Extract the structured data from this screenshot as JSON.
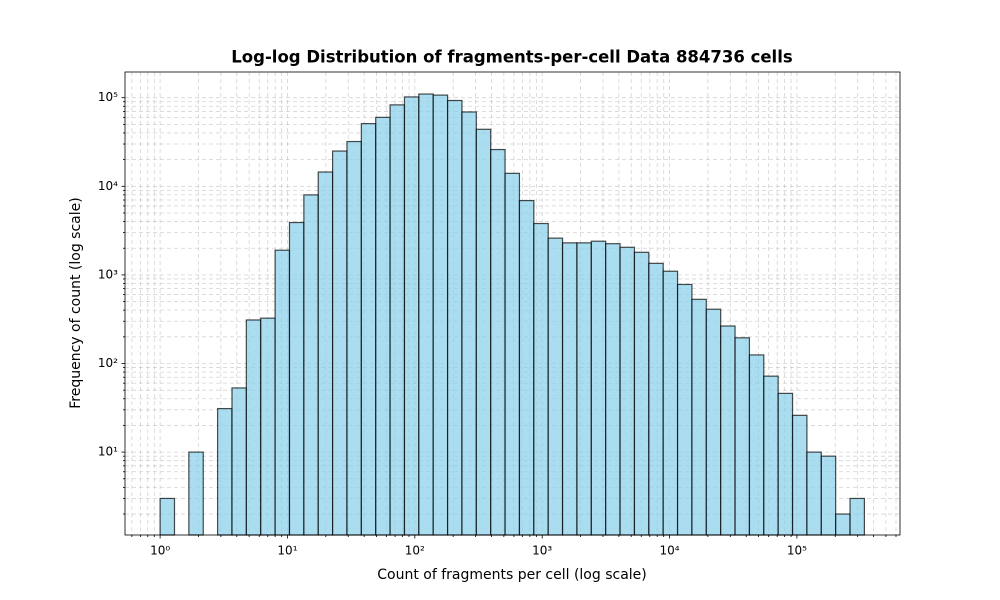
{
  "chart_data": {
    "type": "histogram",
    "title": "Log-log Distribution of fragments-per-cell Data 884736 cells",
    "xlabel": "Count of fragments per cell (log scale)",
    "ylabel": "Frequency of count (log scale)",
    "bins": [
      1,
      1.297,
      1.681,
      2.181,
      2.828,
      3.667,
      4.755,
      6.166,
      7.997,
      10.37,
      13.45,
      17.44,
      22.61,
      29.32,
      38.02,
      49.31,
      63.93,
      82.91,
      107.5,
      139.4,
      180.8,
      234.4,
      304.0,
      394.2,
      511.2,
      662.9,
      859.7,
      1115,
      1445,
      1875,
      2431,
      3152,
      4088,
      5301,
      6875,
      8913,
      11558,
      14988,
      19437,
      25206,
      32687,
      42389,
      54954,
      71276,
      92432,
      119866,
      155445,
      201583,
      261414,
      338844
    ],
    "counts": [
      3,
      0,
      10,
      0,
      31,
      53,
      310,
      325,
      1900,
      3900,
      8000,
      14500,
      25000,
      32000,
      51000,
      60000,
      83000,
      102000,
      110000,
      107000,
      93000,
      69000,
      44000,
      26000,
      14000,
      6900,
      3800,
      2600,
      2300,
      2300,
      2400,
      2250,
      2050,
      1800,
      1350,
      1100,
      780,
      530,
      410,
      265,
      195,
      125,
      72,
      46,
      26,
      10,
      9,
      2,
      3
    ],
    "color": "#87ceeb",
    "edgecolor": "#000000",
    "alpha": 0.7,
    "xlog": true,
    "ylog": true,
    "xlim": [
      0.53,
      645000
    ],
    "ylim": [
      1.16,
      195000
    ],
    "xticks": [
      {
        "value": 1,
        "label": "10⁰"
      },
      {
        "value": 10,
        "label": "10¹"
      },
      {
        "value": 100,
        "label": "10²"
      },
      {
        "value": 1000,
        "label": "10³"
      },
      {
        "value": 10000,
        "label": "10⁴"
      },
      {
        "value": 100000,
        "label": "10⁵"
      }
    ],
    "yticks": [
      {
        "value": 10,
        "label": "10¹"
      },
      {
        "value": 100,
        "label": "10²"
      },
      {
        "value": 1000,
        "label": "10³"
      },
      {
        "value": 10000,
        "label": "10⁴"
      },
      {
        "value": 100000,
        "label": "10⁵"
      }
    ],
    "grid": true,
    "minor_grid": true
  }
}
